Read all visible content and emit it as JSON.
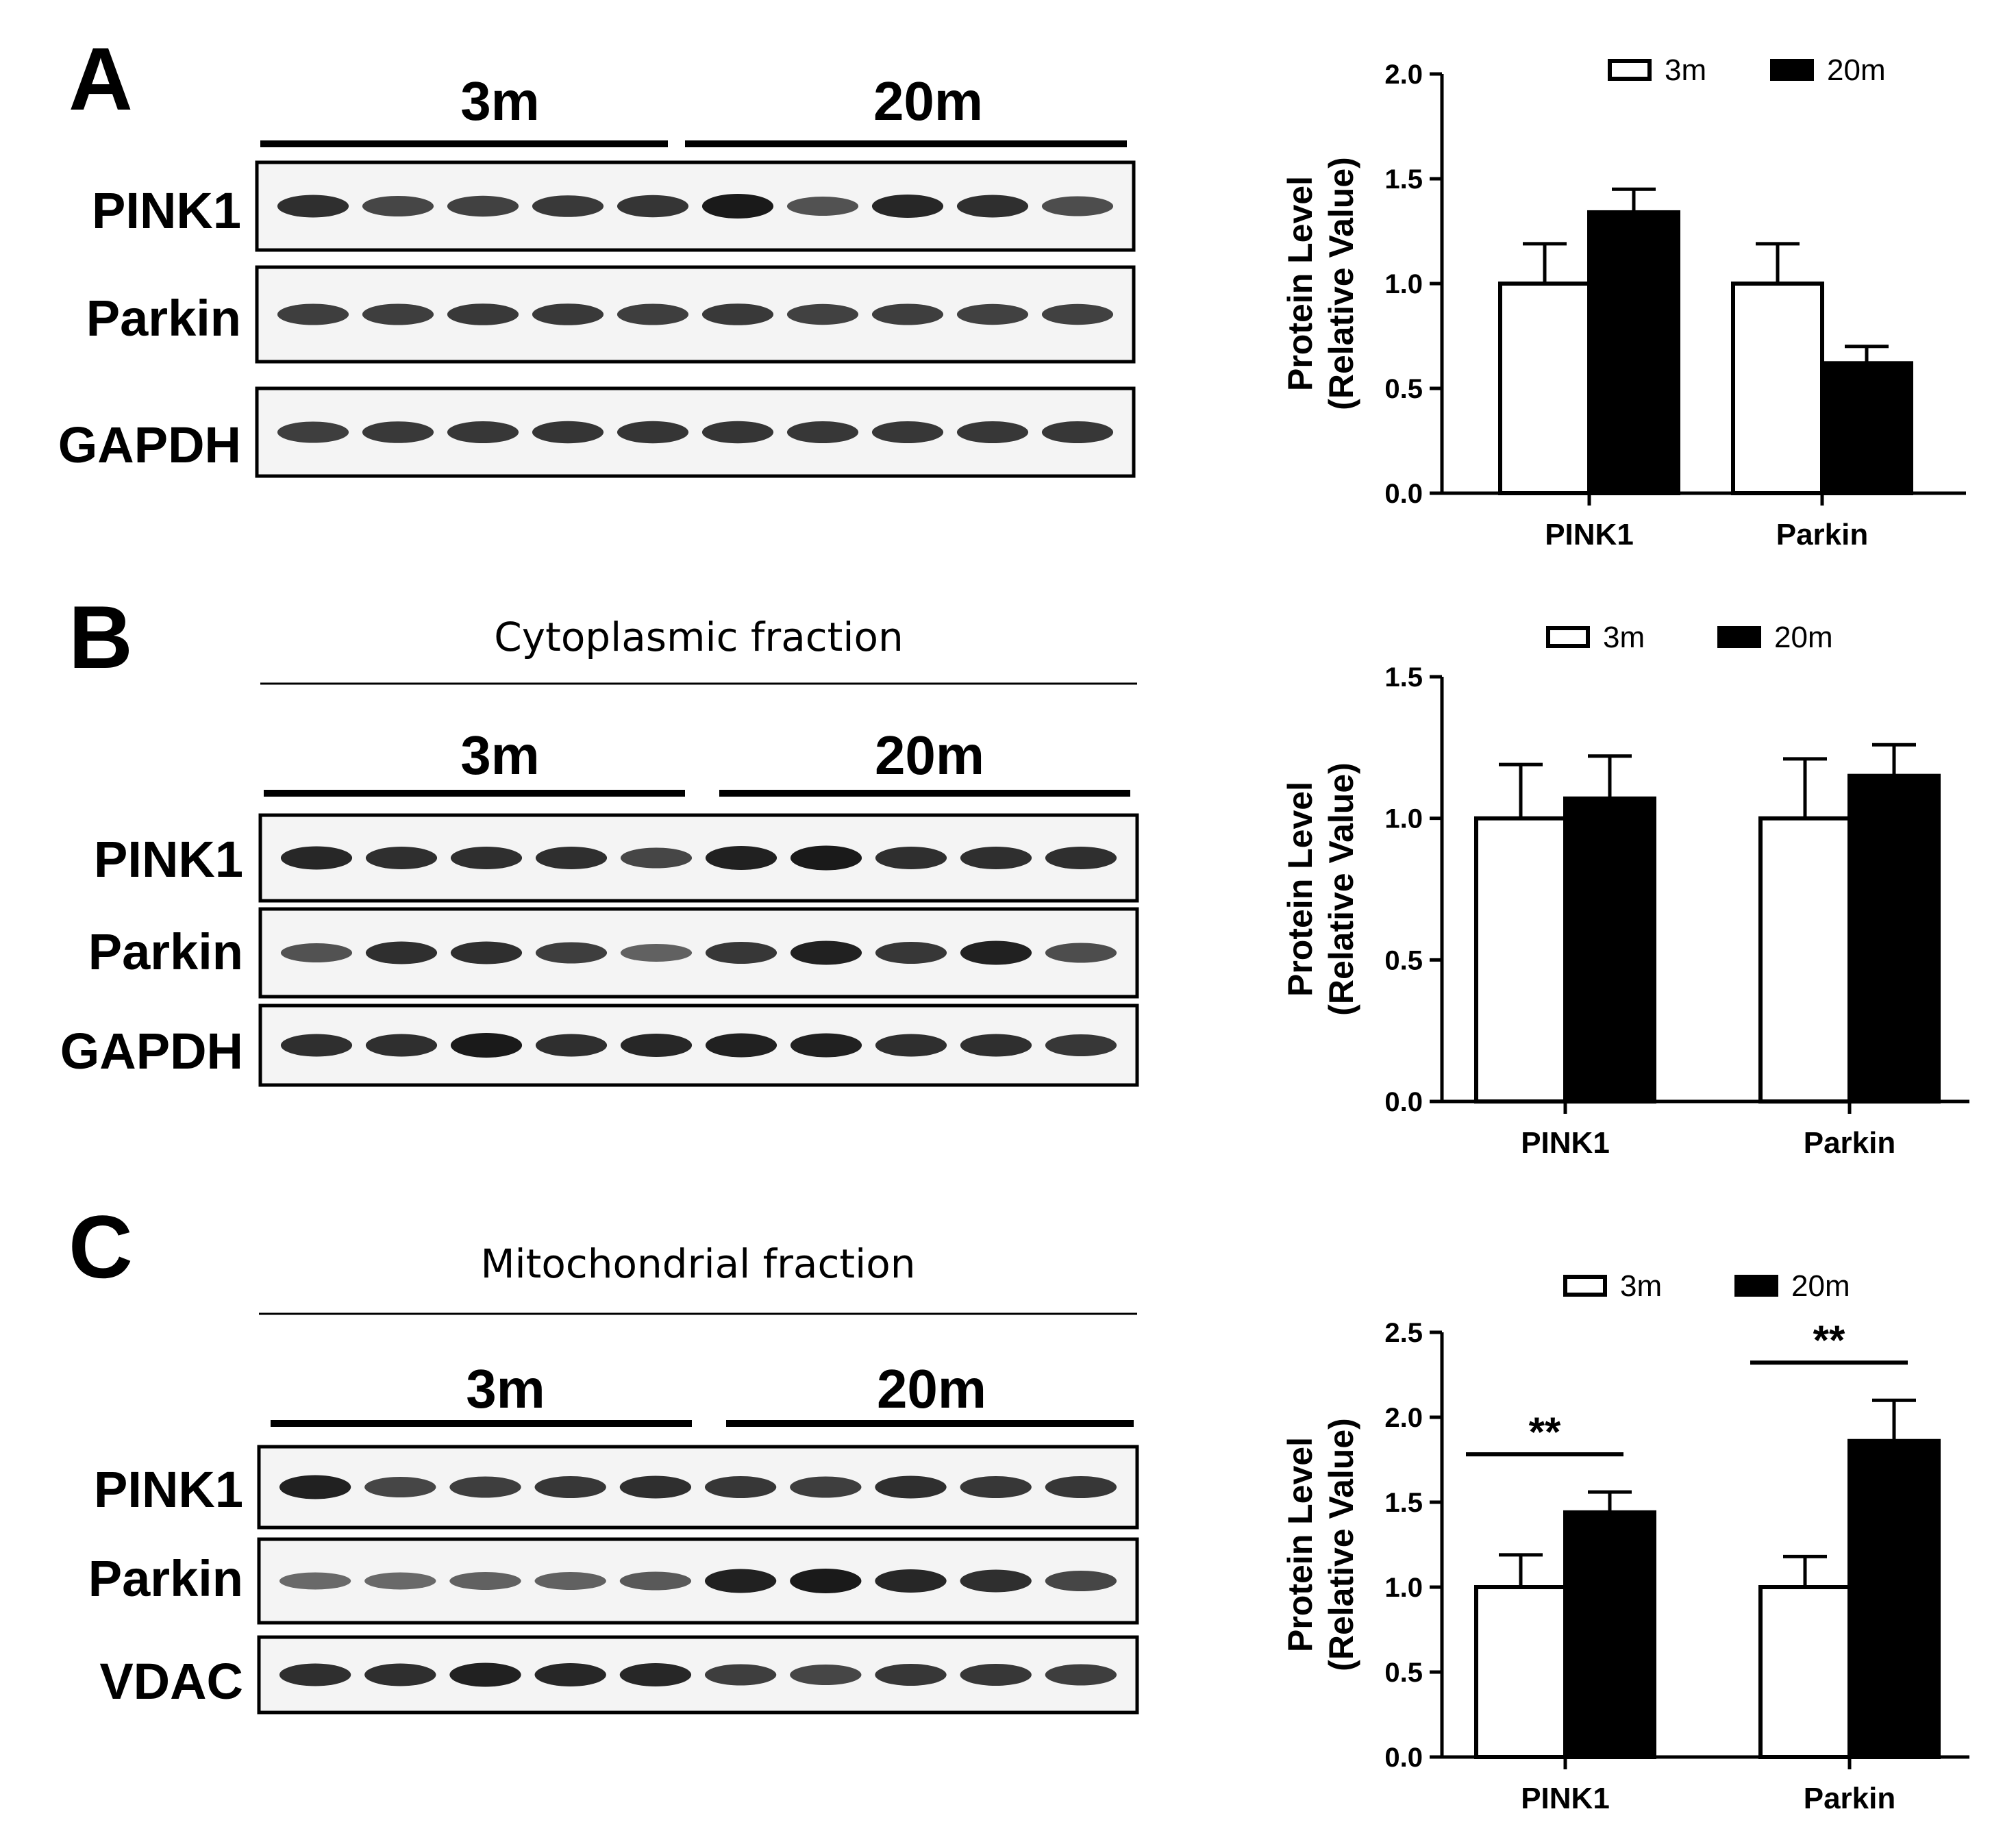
{
  "panels": [
    {
      "letter": "A",
      "fraction_title": "",
      "group_labels": [
        "3m",
        "20m"
      ],
      "blot_rows": [
        {
          "label": "PINK1",
          "intensity": [
            0.85,
            0.7,
            0.72,
            0.78,
            0.82,
            1.0,
            0.6,
            0.9,
            0.85,
            0.65
          ]
        },
        {
          "label": "Parkin",
          "intensity": [
            0.75,
            0.75,
            0.78,
            0.78,
            0.75,
            0.78,
            0.72,
            0.75,
            0.72,
            0.72
          ]
        },
        {
          "label": "GAPDH",
          "intensity": [
            0.75,
            0.78,
            0.8,
            0.82,
            0.82,
            0.82,
            0.8,
            0.8,
            0.8,
            0.8
          ]
        }
      ],
      "chart_data": {
        "type": "bar",
        "categories": [
          "PINK1",
          "Parkin"
        ],
        "series": [
          {
            "name": "3m",
            "values": [
              1.0,
              1.0
            ],
            "errors": [
              0.19,
              0.19
            ]
          },
          {
            "name": "20m",
            "values": [
              1.34,
              0.62
            ],
            "errors": [
              0.11,
              0.08
            ]
          }
        ],
        "ylabel_lines": [
          "Protein Level",
          "(Relative Value)"
        ],
        "ylim": [
          0,
          2.0
        ],
        "yticks": [
          "0.0",
          "0.5",
          "1.0",
          "1.5",
          "2.0"
        ],
        "significance": [
          "",
          ""
        ],
        "legend_position": "top-right",
        "grid": false
      }
    },
    {
      "letter": "B",
      "fraction_title": "Cytoplasmic fraction",
      "group_labels": [
        "3m",
        "20m"
      ],
      "blot_rows": [
        {
          "label": "PINK1",
          "intensity": [
            0.9,
            0.85,
            0.85,
            0.85,
            0.7,
            0.95,
            1.0,
            0.85,
            0.85,
            0.85
          ]
        },
        {
          "label": "Parkin",
          "intensity": [
            0.6,
            0.85,
            0.85,
            0.75,
            0.5,
            0.8,
            0.95,
            0.8,
            0.95,
            0.65
          ]
        },
        {
          "label": "GAPDH",
          "intensity": [
            0.85,
            0.85,
            1.0,
            0.85,
            0.9,
            0.95,
            0.95,
            0.85,
            0.85,
            0.8
          ]
        }
      ],
      "chart_data": {
        "type": "bar",
        "categories": [
          "PINK1",
          "Parkin"
        ],
        "series": [
          {
            "name": "3m",
            "values": [
              1.0,
              1.0
            ],
            "errors": [
              0.19,
              0.21
            ]
          },
          {
            "name": "20m",
            "values": [
              1.07,
              1.15
            ],
            "errors": [
              0.15,
              0.11
            ]
          }
        ],
        "ylabel_lines": [
          "Protein Level",
          "(Relative Value)"
        ],
        "ylim": [
          0,
          1.5
        ],
        "yticks": [
          "0.0",
          "0.5",
          "1.0",
          "1.5"
        ],
        "significance": [
          "",
          ""
        ],
        "legend_position": "top-right",
        "grid": false
      }
    },
    {
      "letter": "C",
      "fraction_title": "Mitochondrial fraction",
      "group_labels": [
        "3m",
        "20m"
      ],
      "blot_rows": [
        {
          "label": "PINK1",
          "intensity": [
            0.95,
            0.7,
            0.75,
            0.8,
            0.85,
            0.8,
            0.75,
            0.85,
            0.8,
            0.8
          ]
        },
        {
          "label": "Parkin",
          "intensity": [
            0.45,
            0.45,
            0.5,
            0.5,
            0.55,
            0.95,
            1.0,
            0.9,
            0.85,
            0.7
          ]
        },
        {
          "label": "VDAC",
          "intensity": [
            0.85,
            0.85,
            0.95,
            0.9,
            0.9,
            0.75,
            0.7,
            0.8,
            0.8,
            0.75
          ]
        }
      ],
      "chart_data": {
        "type": "bar",
        "categories": [
          "PINK1",
          "Parkin"
        ],
        "series": [
          {
            "name": "3m",
            "values": [
              1.0,
              1.0
            ],
            "errors": [
              0.19,
              0.18
            ]
          },
          {
            "name": "20m",
            "values": [
              1.44,
              1.86
            ],
            "errors": [
              0.12,
              0.24
            ]
          }
        ],
        "ylabel_lines": [
          "Protein Level",
          "(Relative Value)"
        ],
        "ylim": [
          0,
          2.5
        ],
        "yticks": [
          "0.0",
          "0.5",
          "1.0",
          "1.5",
          "2.0",
          "2.5"
        ],
        "significance": [
          "**",
          "**"
        ],
        "legend_position": "top-right",
        "grid": false
      }
    }
  ],
  "colors": {
    "bar_3m_fill": "#ffffff",
    "bar_20m_fill": "#000000",
    "stroke": "#000000",
    "band": "#1a1a1a"
  }
}
